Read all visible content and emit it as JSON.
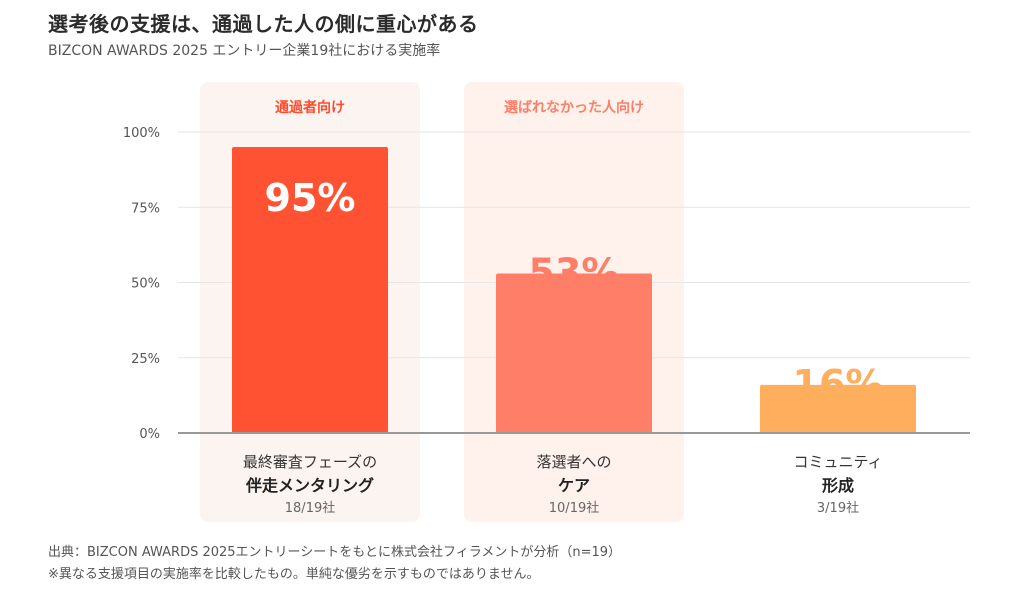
{
  "header": {
    "title": "選考後の支援は、通過した人の側に重心がある",
    "subtitle": "BIZCON AWARDS 2025 エントリー企業19社における実施率"
  },
  "chart_data": {
    "type": "bar",
    "title": "選考後の支援は、通過した人の側に重心がある",
    "subtitle": "BIZCON AWARDS 2025 エントリー企業19社における実施率",
    "categories": [
      {
        "line1": "最終審査フェーズの",
        "line2": "伴走メンタリング",
        "count": "18/19社"
      },
      {
        "line1": "落選者への",
        "line2": "ケア",
        "count": "10/19社"
      },
      {
        "line1": "コミュニティ",
        "line2": "形成",
        "count": "3/19社"
      }
    ],
    "values": [
      95,
      53,
      16
    ],
    "value_labels": [
      "95%",
      "53%",
      "16%"
    ],
    "bar_colors": [
      "#ff5233",
      "#ff7e67",
      "#ffae5e"
    ],
    "label_colors": [
      "#ffffff",
      "#ff7e67",
      "#ffae5e"
    ],
    "highlights": [
      {
        "label": "通過者向け",
        "color": "#ff4b2b",
        "background": "#fbf4f0"
      },
      {
        "label": "選ばれなかった人向け",
        "color": "#ff7e67",
        "background": "#fff1ec"
      }
    ],
    "yticks": [
      "100%",
      "75%",
      "50%",
      "25%",
      "0%"
    ],
    "ylim": [
      0,
      100
    ],
    "grid": true
  },
  "footer": {
    "source": "出典：BIZCON AWARDS 2025エントリーシートをもとに株式会社フィラメントが分析（n=19）",
    "note": "※異なる支援項目の実施率を比較したもの。単純な優劣を示すものではありません。"
  }
}
